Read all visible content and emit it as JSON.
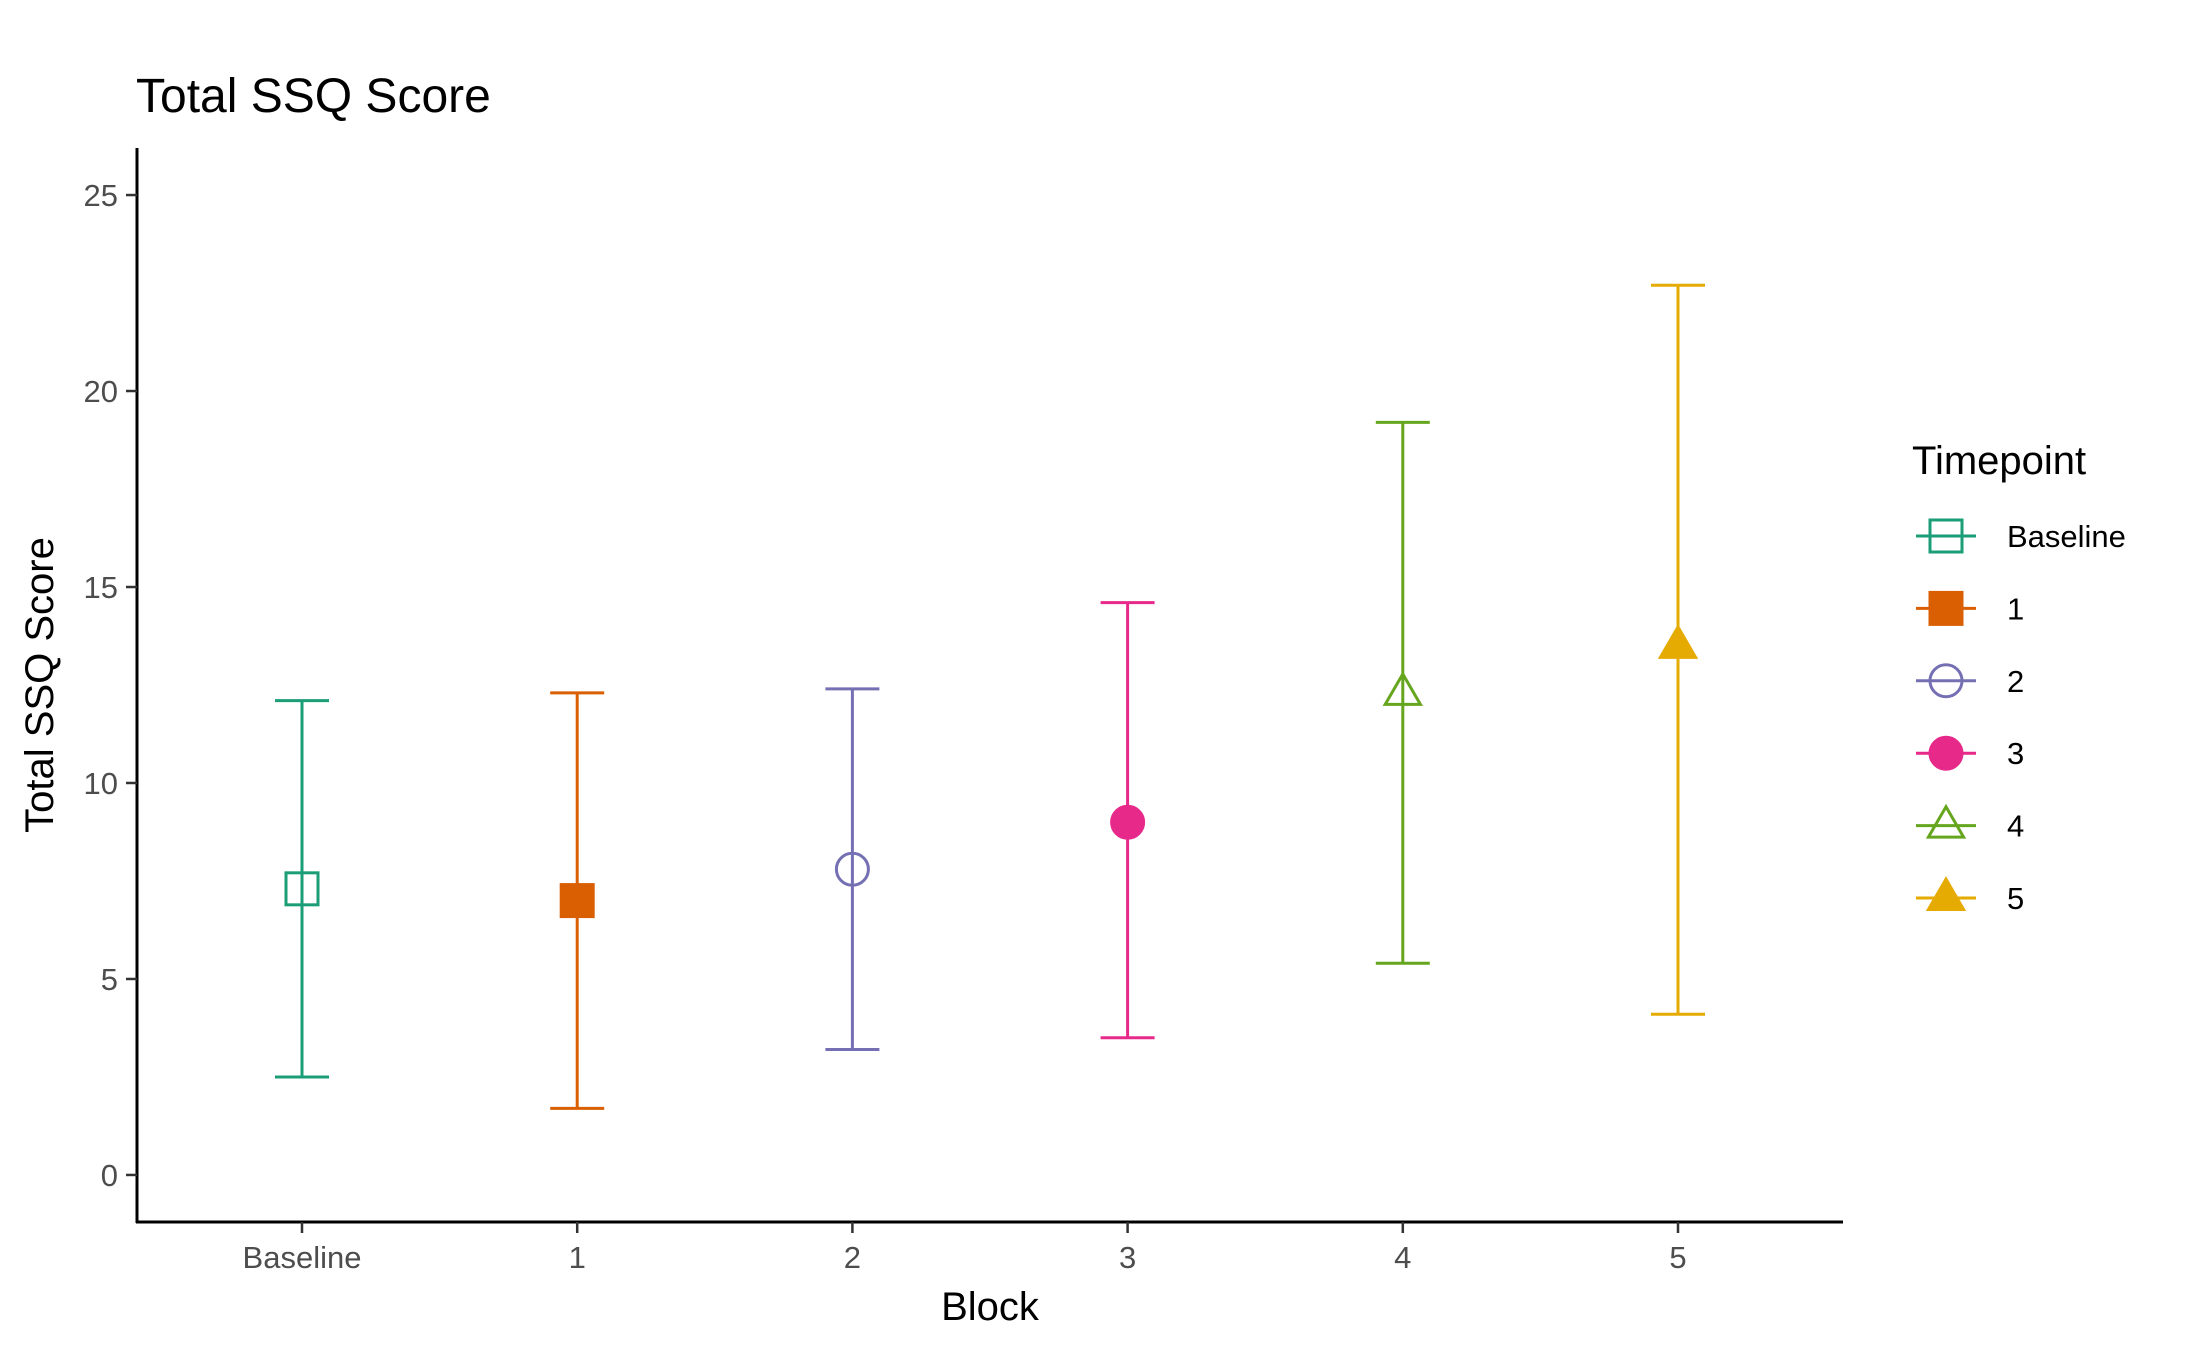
{
  "chart_data": {
    "type": "scatter",
    "title": "Total SSQ Score",
    "xlabel": "Block",
    "ylabel": "Total SSQ Score",
    "categories": [
      "Baseline",
      "1",
      "2",
      "3",
      "4",
      "5"
    ],
    "ylim": [
      -1.2,
      26.2
    ],
    "yticks": [
      0,
      5,
      10,
      15,
      20,
      25
    ],
    "grid": false,
    "error_bars": true,
    "series": [
      {
        "name": "Baseline",
        "x": "Baseline",
        "y": 7.3,
        "ymin": 2.5,
        "ymax": 12.1,
        "color": "#1b9e77",
        "marker": "square-open"
      },
      {
        "name": "1",
        "x": "1",
        "y": 7.0,
        "ymin": 1.7,
        "ymax": 12.3,
        "color": "#d95f02",
        "marker": "square-filled"
      },
      {
        "name": "2",
        "x": "2",
        "y": 7.8,
        "ymin": 3.2,
        "ymax": 12.4,
        "color": "#7570b3",
        "marker": "circle-open"
      },
      {
        "name": "3",
        "x": "3",
        "y": 9.0,
        "ymin": 3.5,
        "ymax": 14.6,
        "color": "#e7298a",
        "marker": "circle-filled"
      },
      {
        "name": "4",
        "x": "4",
        "y": 12.3,
        "ymin": 5.4,
        "ymax": 19.2,
        "color": "#66a61e",
        "marker": "triangle-open"
      },
      {
        "name": "5",
        "x": "5",
        "y": 13.5,
        "ymin": 4.1,
        "ymax": 22.7,
        "color": "#e6ab02",
        "marker": "triangle-filled"
      }
    ],
    "legend": {
      "title": "Timepoint",
      "position": "right",
      "entries": [
        "Baseline",
        "1",
        "2",
        "3",
        "4",
        "5"
      ]
    }
  }
}
